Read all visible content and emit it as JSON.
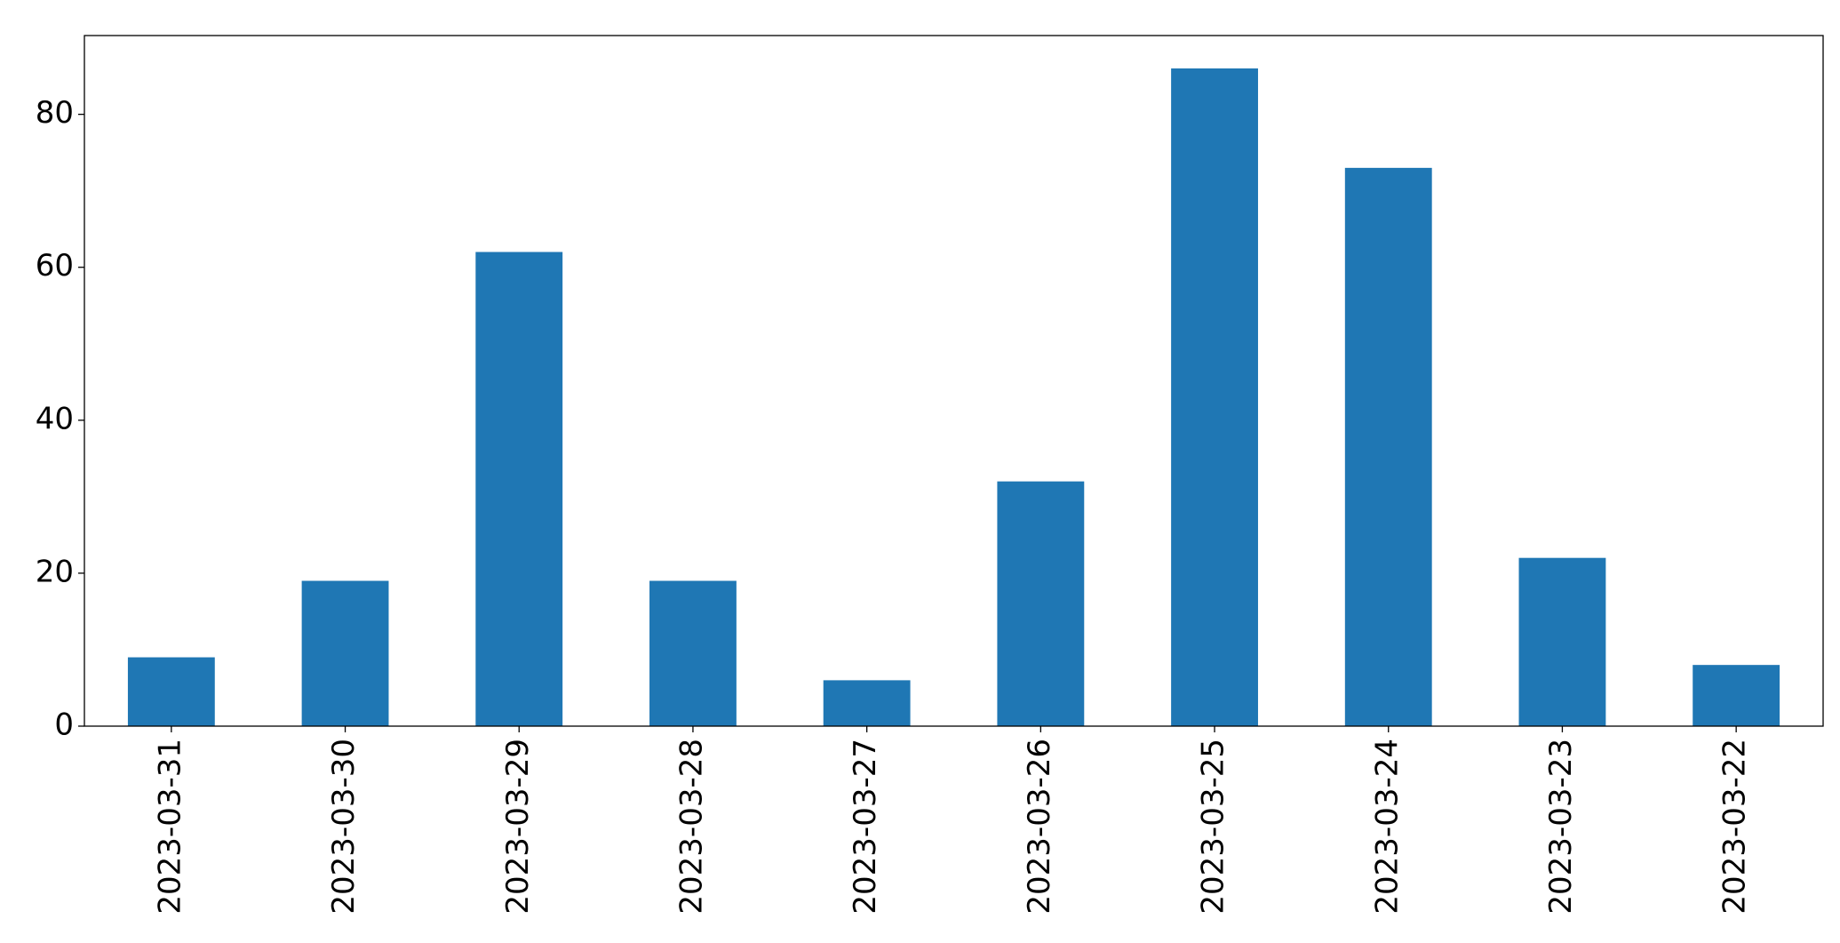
{
  "chart_data": {
    "type": "bar",
    "categories": [
      "2023-03-31",
      "2023-03-30",
      "2023-03-29",
      "2023-03-28",
      "2023-03-27",
      "2023-03-26",
      "2023-03-25",
      "2023-03-24",
      "2023-03-23",
      "2023-03-22"
    ],
    "values": [
      9,
      19,
      62,
      19,
      6,
      32,
      86,
      73,
      22,
      8
    ],
    "color": "#1f77b4",
    "ylim": [
      0,
      90.3
    ],
    "yticks": [
      0,
      20,
      40,
      60,
      80
    ],
    "grid": false
  }
}
